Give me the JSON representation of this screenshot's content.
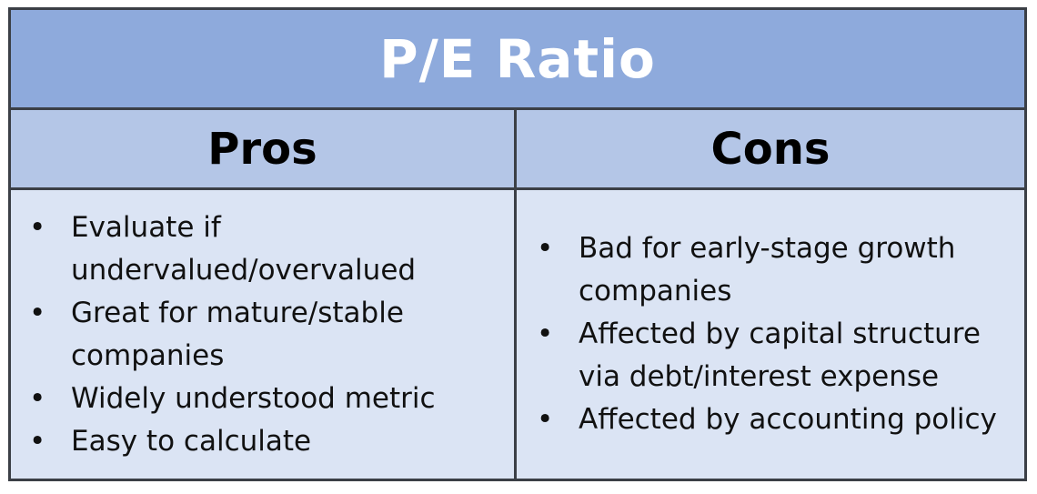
{
  "title": "P/E Ratio",
  "pros": {
    "heading": "Pros",
    "items": [
      "Evaluate if undervalued/overvalued",
      "Great for mature/stable companies",
      "Widely understood metric",
      "Easy to calculate"
    ]
  },
  "cons": {
    "heading": "Cons",
    "items": [
      "Bad for early-stage growth companies",
      "Affected by capital structure via debt/interest expense",
      "Affected by accounting policy"
    ]
  },
  "bullet_glyph": "•",
  "colors": {
    "title_bg": "#8eaadc",
    "header_bg": "#b4c6e7",
    "body_bg": "#dbe4f4",
    "border": "#3b3f46"
  }
}
